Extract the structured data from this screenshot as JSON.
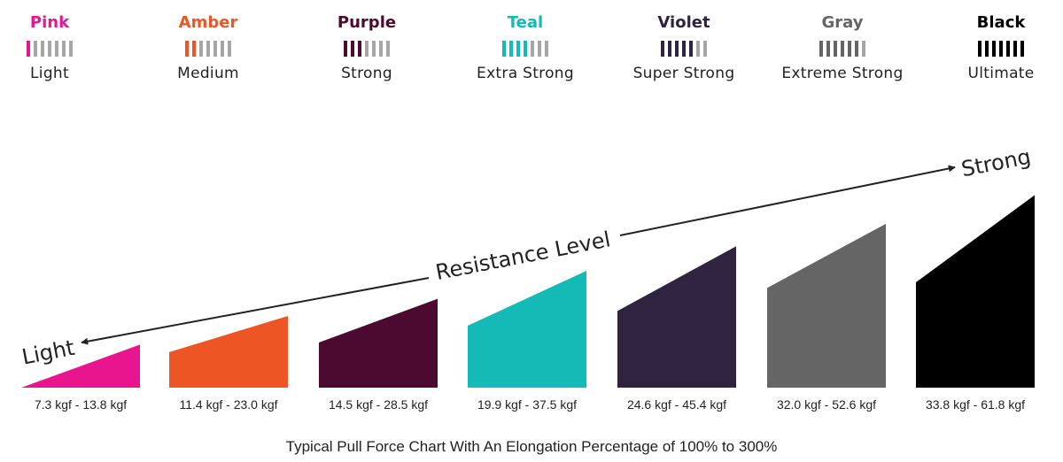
{
  "legend": [
    {
      "name": "Pink",
      "level": "Light",
      "color": "#e8158e",
      "filled": 1
    },
    {
      "name": "Amber",
      "level": "Medium",
      "color": "#ee5524",
      "filled": 2
    },
    {
      "name": "Purple",
      "level": "Strong",
      "color": "#4d0a30",
      "filled": 3
    },
    {
      "name": "Teal",
      "level": "Extra Strong",
      "color": "#14bab5",
      "filled": 4
    },
    {
      "name": "Violet",
      "level": "Super Strong",
      "color": "#2f2340",
      "filled": 5
    },
    {
      "name": "Gray",
      "level": "Extreme Strong",
      "color": "#656565",
      "filled": 6
    },
    {
      "name": "Black",
      "level": "Ultimate",
      "color": "#000000",
      "filled": 7
    }
  ],
  "legend_bar_count": 7,
  "legend_empty_color": "#a6a6a6",
  "arrow": {
    "label": "Resistance Level",
    "left_label": "Light",
    "right_label": "Strong"
  },
  "chart_data": {
    "type": "bar",
    "categories": [
      "Pink",
      "Amber",
      "Purple",
      "Teal",
      "Violet",
      "Gray",
      "Black"
    ],
    "series": [
      {
        "low": [
          7.3,
          11.4,
          14.5,
          19.9,
          24.6,
          32.0,
          33.8
        ],
        "high": [
          13.8,
          23.0,
          28.5,
          37.5,
          45.4,
          52.6,
          61.8
        ]
      }
    ],
    "range_labels": [
      "7.3 kgf - 13.8 kgf",
      "11.4 kgf - 23.0 kgf",
      "14.5 kgf - 28.5 kgf",
      "19.9 kgf - 37.5 kgf",
      "24.6 kgf - 45.4 kgf",
      "32.0 kgf - 52.6 kgf",
      "33.8 kgf - 61.8 kgf"
    ],
    "colors": [
      "#e8158e",
      "#ee5524",
      "#4d0a30",
      "#14bab5",
      "#2f2340",
      "#656565",
      "#000000"
    ],
    "grid": false,
    "legend_position": "top"
  },
  "caption": "Typical Pull Force Chart With An Elongation Percentage of 100% to 300%"
}
